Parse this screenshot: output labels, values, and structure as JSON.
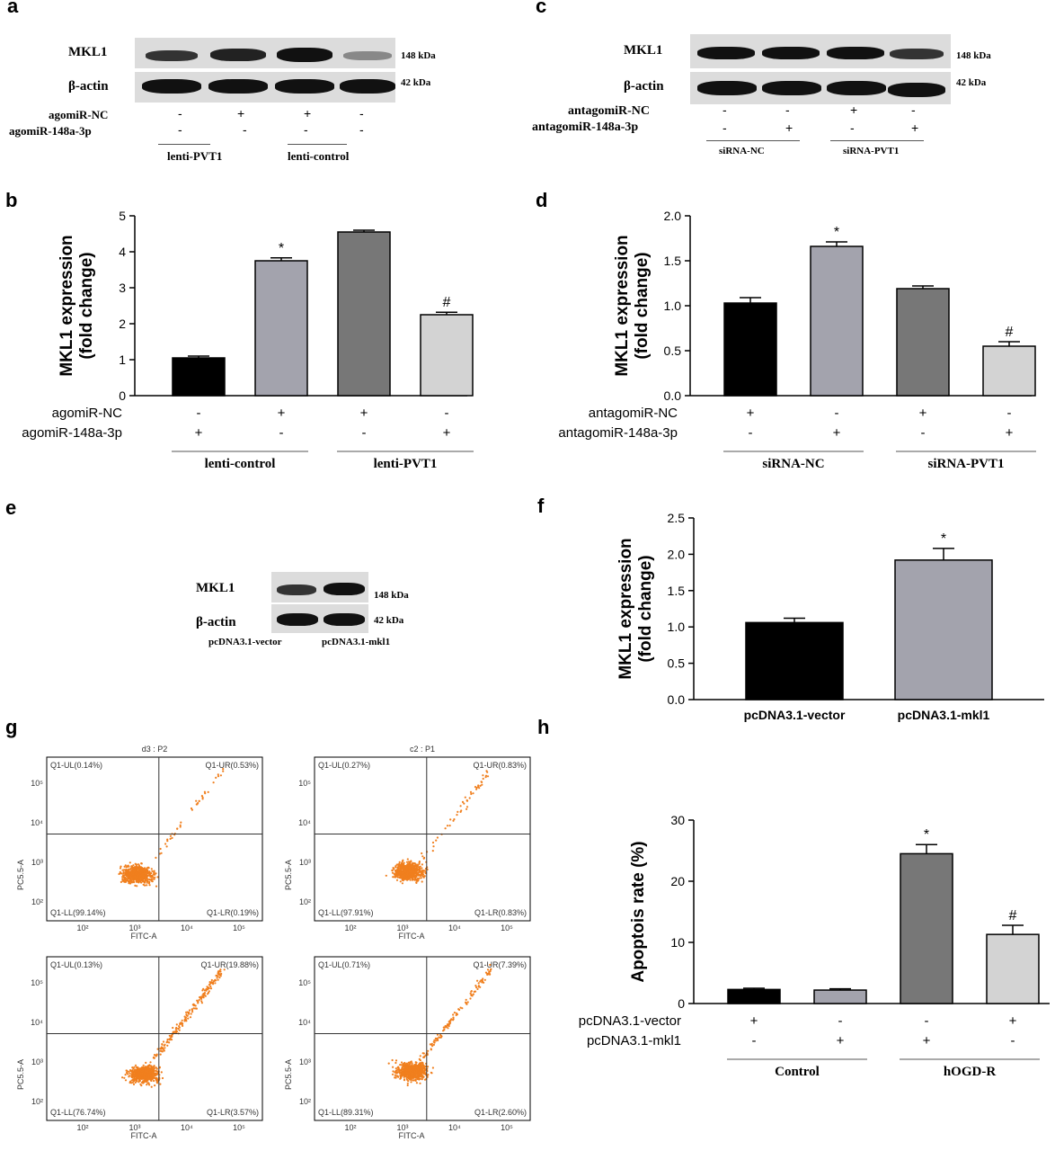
{
  "panels": {
    "a": "a",
    "b": "b",
    "c": "c",
    "d": "d",
    "e": "e",
    "f": "f",
    "g": "g",
    "h": "h"
  },
  "blot_a": {
    "rows": [
      "MKL1",
      "β-actin"
    ],
    "kda": [
      "148 kDa",
      "42 kDa"
    ],
    "cond_labels": [
      "agomiR-NC",
      "agomiR-148a-3p"
    ],
    "signs": [
      [
        "-",
        "+",
        "+",
        "-"
      ],
      [
        "-",
        "-",
        "-",
        "-"
      ]
    ],
    "groups": [
      "lenti-PVT1",
      "lenti-control"
    ]
  },
  "blot_c": {
    "rows": [
      "MKL1",
      "β-actin"
    ],
    "kda": [
      "148 kDa",
      "42 kDa"
    ],
    "cond_labels": [
      "antagomiR-NC",
      "antagomiR-148a-3p"
    ],
    "signs": [
      [
        "-",
        "-",
        "+",
        "-"
      ],
      [
        "-",
        "+",
        "-",
        "+"
      ]
    ],
    "groups": [
      "siRNA-NC",
      "siRNA-PVT1"
    ]
  },
  "blot_e": {
    "rows": [
      "MKL1",
      "β-actin"
    ],
    "kda": [
      "148 kDa",
      "42 kDa"
    ],
    "lanes": [
      "pcDNA3.1-vector",
      "pcDNA3.1-mkl1"
    ]
  },
  "flow_g": {
    "plots": [
      {
        "title": "d3 : P2",
        "ul": "Q1-UL(0.14%)",
        "ur": "Q1-UR(0.53%)",
        "ll": "Q1-LL(99.14%)",
        "lr": "Q1-LR(0.19%)"
      },
      {
        "title": "c2 : P1",
        "ul": "Q1-UL(0.27%)",
        "ur": "Q1-UR(0.83%)",
        "ll": "Q1-LL(97.91%)",
        "lr": "Q1-LR(0.83%)"
      },
      {
        "title": "",
        "ul": "Q1-UL(0.13%)",
        "ur": "Q1-UR(19.88%)",
        "ll": "Q1-LL(76.74%)",
        "lr": "Q1-LR(3.57%)"
      },
      {
        "title": "",
        "ul": "Q1-UL(0.71%)",
        "ur": "Q1-UR(7.39%)",
        "ll": "Q1-LL(89.31%)",
        "lr": "Q1-LR(2.60%)"
      }
    ],
    "xlabel": "FITC-A",
    "ylabel": "PC5.5-A",
    "xticks": [
      "10²",
      "10³",
      "10⁴",
      "10⁵"
    ],
    "yticks": [
      "10²",
      "10³",
      "10⁴",
      "10⁵"
    ]
  },
  "chart_data": [
    {
      "panel": "b",
      "type": "bar",
      "ylabel": "MKL1 expression\n(fold change)",
      "ylim": [
        0,
        5
      ],
      "yticks": [
        "0",
        "1",
        "2",
        "3",
        "4",
        "5"
      ],
      "values": [
        1.05,
        3.75,
        4.55,
        2.25
      ],
      "errors": [
        0.05,
        0.08,
        0.05,
        0.07
      ],
      "colors": [
        "#000000",
        "#a3a3ad",
        "#777777",
        "#d3d3d3"
      ],
      "markers": [
        "",
        "*",
        "",
        "#"
      ],
      "cond_labels": [
        "agomiR-NC",
        "agomiR-148a-3p"
      ],
      "signs": [
        [
          "-",
          "+",
          "+",
          "-"
        ],
        [
          "+",
          "-",
          "-",
          "+"
        ]
      ],
      "groups": [
        "lenti-control",
        "lenti-PVT1"
      ]
    },
    {
      "panel": "d",
      "type": "bar",
      "ylabel": "MKL1 expression\n(fold change)",
      "ylim": [
        0,
        2.0
      ],
      "yticks": [
        "0.0",
        "0.5",
        "1.0",
        "1.5",
        "2.0"
      ],
      "values": [
        1.03,
        1.66,
        1.19,
        0.55
      ],
      "errors": [
        0.06,
        0.05,
        0.03,
        0.05
      ],
      "colors": [
        "#000000",
        "#a3a3ad",
        "#777777",
        "#d3d3d3"
      ],
      "markers": [
        "",
        "*",
        "",
        "#"
      ],
      "cond_labels": [
        "antagomiR-NC",
        "antagomiR-148a-3p"
      ],
      "signs": [
        [
          "+",
          "-",
          "+",
          "-"
        ],
        [
          "-",
          "+",
          "-",
          "+"
        ]
      ],
      "groups": [
        "siRNA-NC",
        "siRNA-PVT1"
      ]
    },
    {
      "panel": "f",
      "type": "bar",
      "ylabel": "MKL1 expression\n(fold change)",
      "ylim": [
        0,
        2.5
      ],
      "yticks": [
        "0.0",
        "0.5",
        "1.0",
        "1.5",
        "2.0",
        "2.5"
      ],
      "categories": [
        "pcDNA3.1-vector",
        "pcDNA3.1-mkl1"
      ],
      "values": [
        1.06,
        1.92
      ],
      "errors": [
        0.06,
        0.16
      ],
      "colors": [
        "#000000",
        "#a3a3ad"
      ],
      "markers": [
        "",
        "*"
      ]
    },
    {
      "panel": "h",
      "type": "bar",
      "ylabel": "Apoptois rate (%)",
      "ylim": [
        0,
        30
      ],
      "yticks": [
        "0",
        "10",
        "20",
        "30"
      ],
      "values": [
        2.3,
        2.2,
        24.5,
        11.3
      ],
      "errors": [
        0.2,
        0.2,
        1.5,
        1.5
      ],
      "colors": [
        "#000000",
        "#a3a3ad",
        "#777777",
        "#d3d3d3"
      ],
      "markers": [
        "",
        "",
        "*",
        "#"
      ],
      "cond_labels": [
        "pcDNA3.1-vector",
        "pcDNA3.1-mkl1"
      ],
      "signs": [
        [
          "+",
          "-",
          "-",
          "+"
        ],
        [
          "-",
          "+",
          "+",
          "-"
        ]
      ],
      "groups": [
        "Control",
        "hOGD-R"
      ]
    }
  ]
}
